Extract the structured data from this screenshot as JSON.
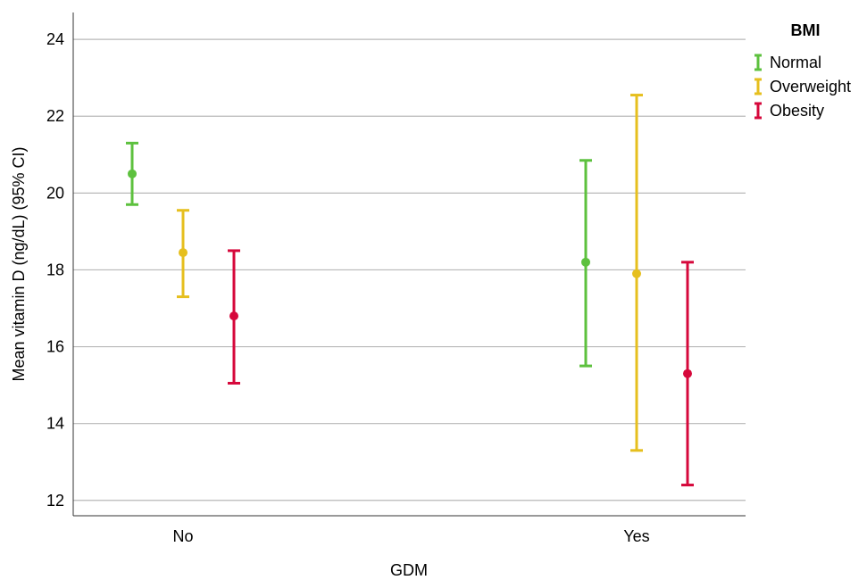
{
  "chart_data": {
    "type": "errorbar",
    "xlabel": "GDM",
    "ylabel": "Mean vitamin D (ng/dL) (95% CI)",
    "categories": [
      "No",
      "Yes"
    ],
    "ylim": [
      11.6,
      24.7
    ],
    "yticks": [
      12,
      14,
      16,
      18,
      20,
      22,
      24
    ],
    "grid": true,
    "legend": {
      "title": "BMI",
      "position": "top-right"
    },
    "series": [
      {
        "name": "Normal",
        "color": "#5dc13e",
        "values": [
          {
            "mean": 20.5,
            "lower": 19.7,
            "upper": 21.3
          },
          {
            "mean": 18.2,
            "lower": 15.5,
            "upper": 20.85
          }
        ]
      },
      {
        "name": "Overweight",
        "color": "#e6bf1e",
        "values": [
          {
            "mean": 18.45,
            "lower": 17.3,
            "upper": 19.55
          },
          {
            "mean": 17.9,
            "lower": 13.3,
            "upper": 22.55
          }
        ]
      },
      {
        "name": "Obesity",
        "color": "#d6083b",
        "values": [
          {
            "mean": 16.8,
            "lower": 15.05,
            "upper": 18.5
          },
          {
            "mean": 15.3,
            "lower": 12.4,
            "upper": 18.2
          }
        ]
      }
    ]
  }
}
